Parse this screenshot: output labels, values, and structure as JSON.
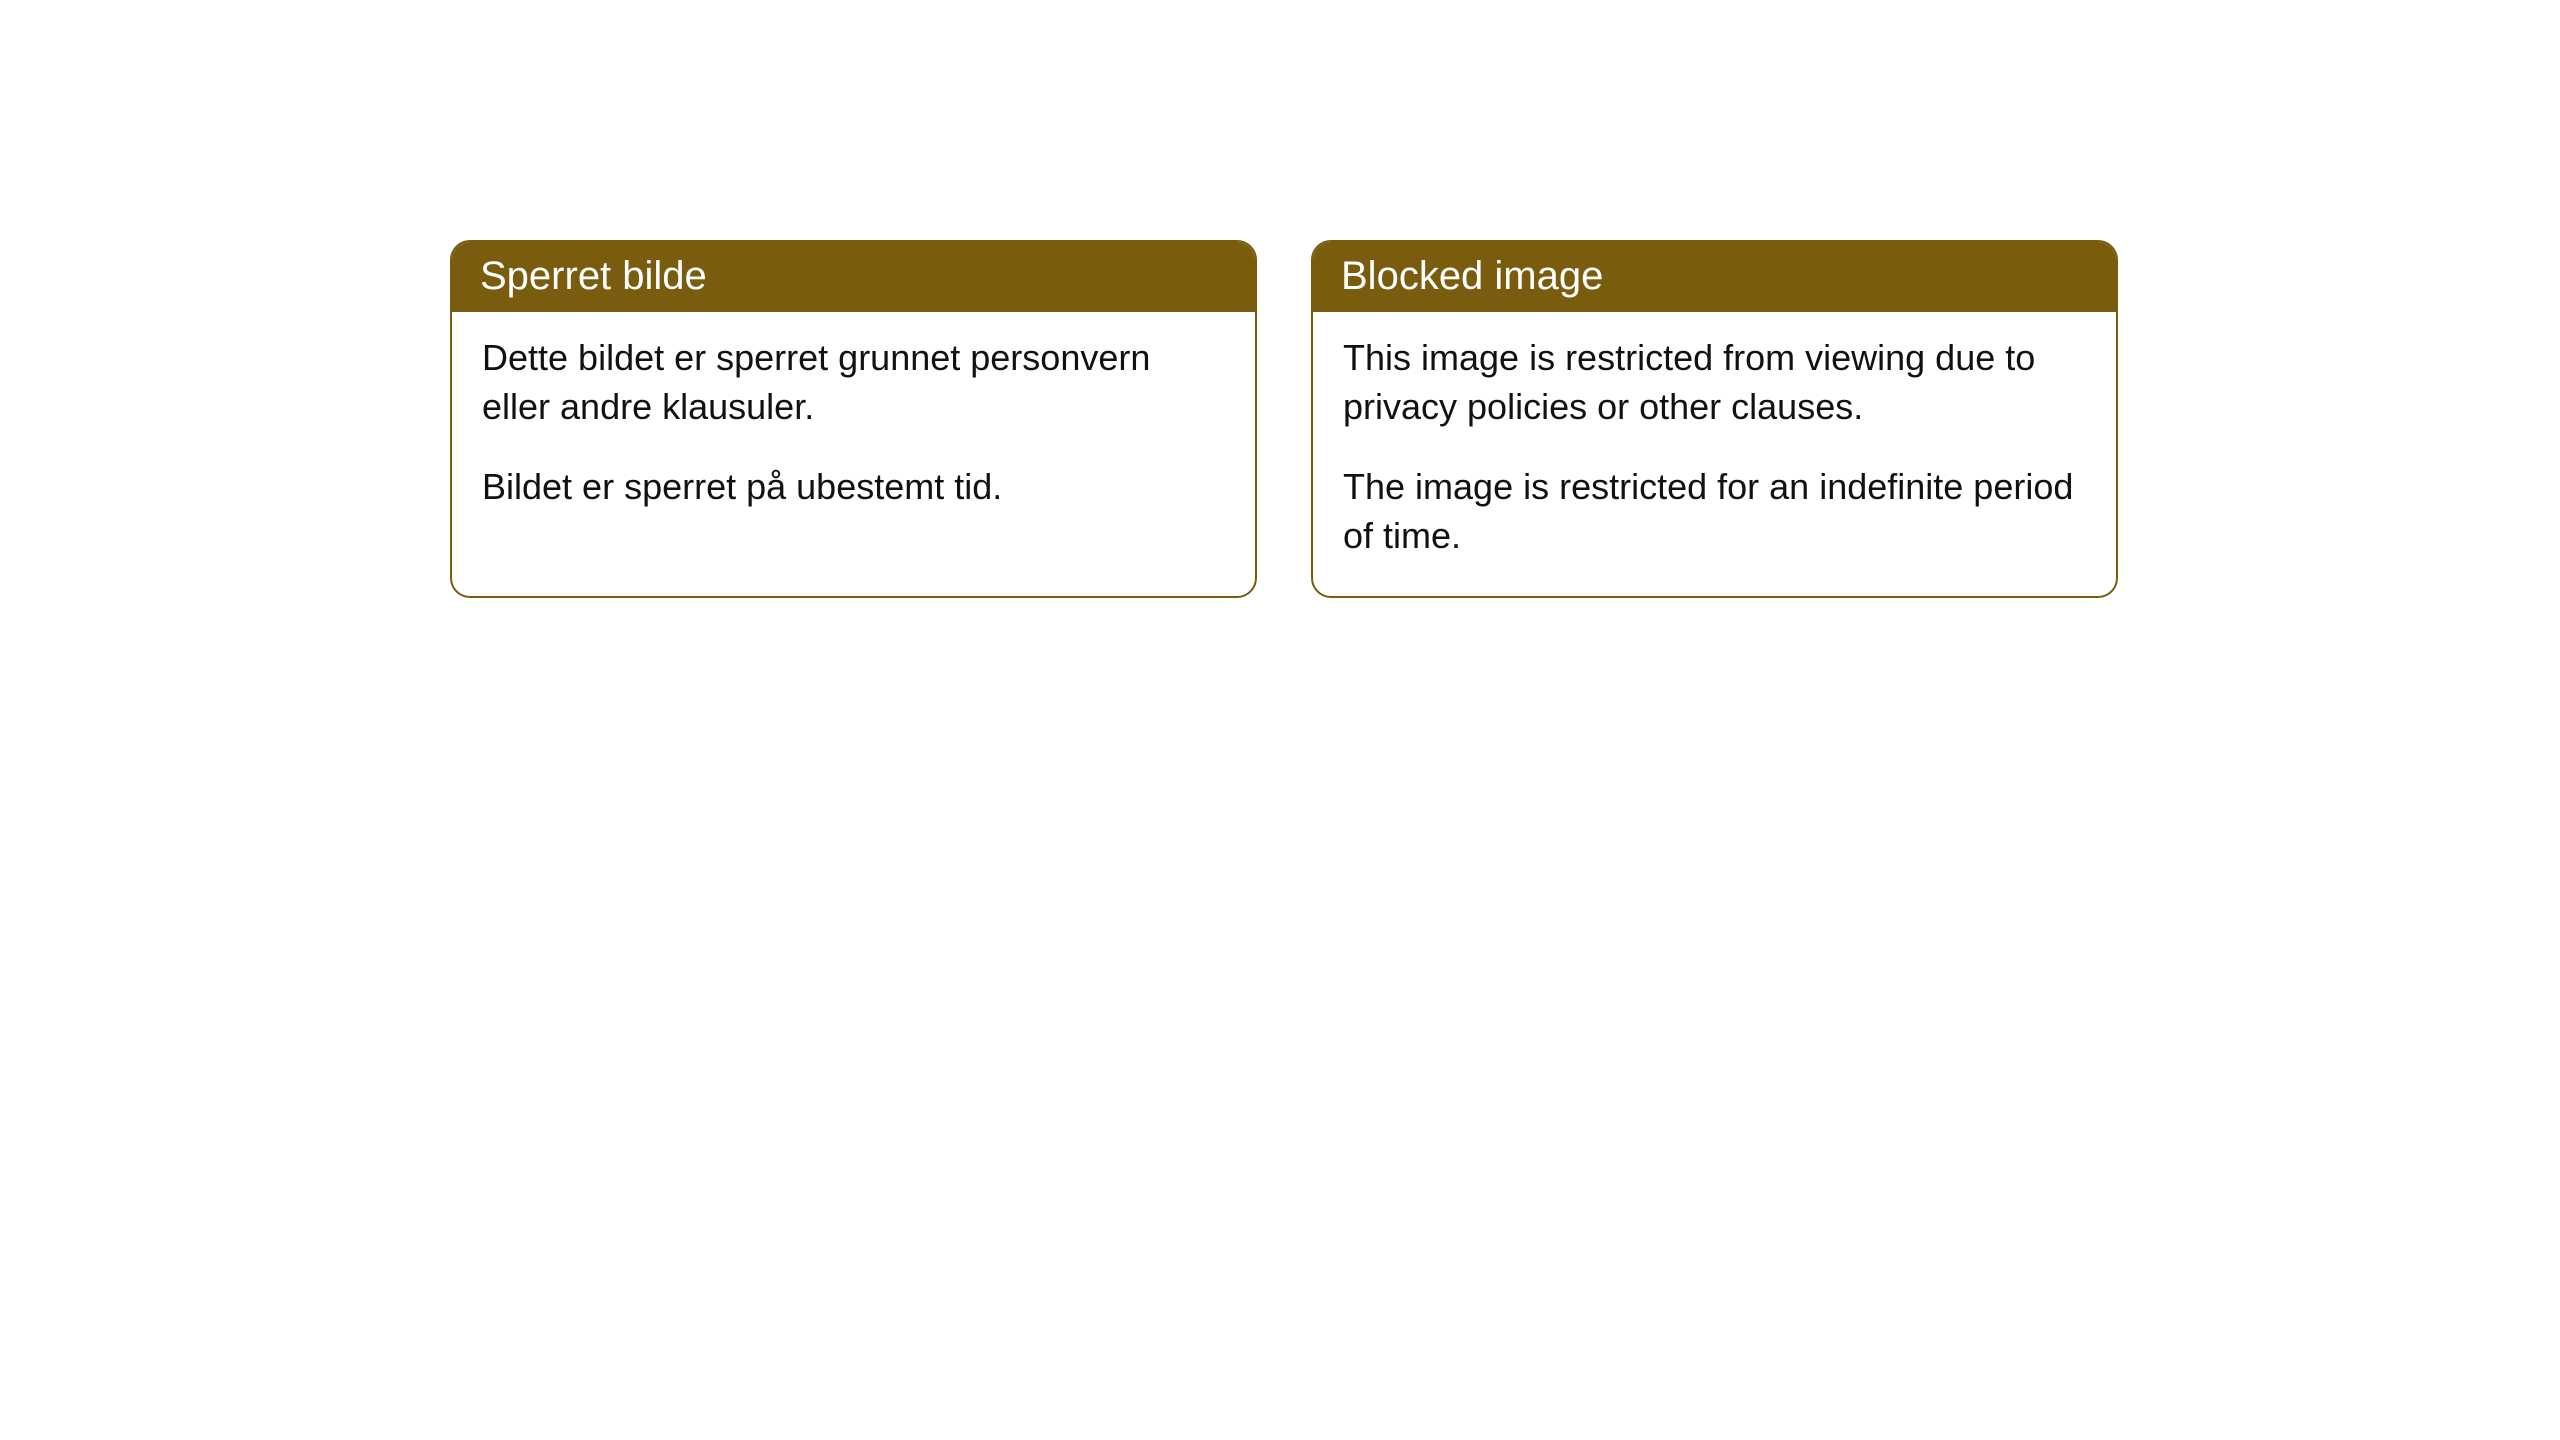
{
  "cards": [
    {
      "title": "Sperret bilde",
      "p1": "Dette bildet er sperret grunnet personvern eller andre klausuler.",
      "p2": "Bildet er sperret på ubestemt tid."
    },
    {
      "title": "Blocked image",
      "p1": "This image is restricted from viewing due to privacy policies or other clauses.",
      "p2": "The image is restricted for an indefinite period of time."
    }
  ],
  "style": {
    "header_bg": "#7a5c0f",
    "header_text_color": "#ffffff",
    "border_color": "#7a5c0f",
    "body_text_color": "#111111",
    "background_color": "#ffffff",
    "border_radius": 20,
    "header_fontsize": 40,
    "body_fontsize": 36
  }
}
